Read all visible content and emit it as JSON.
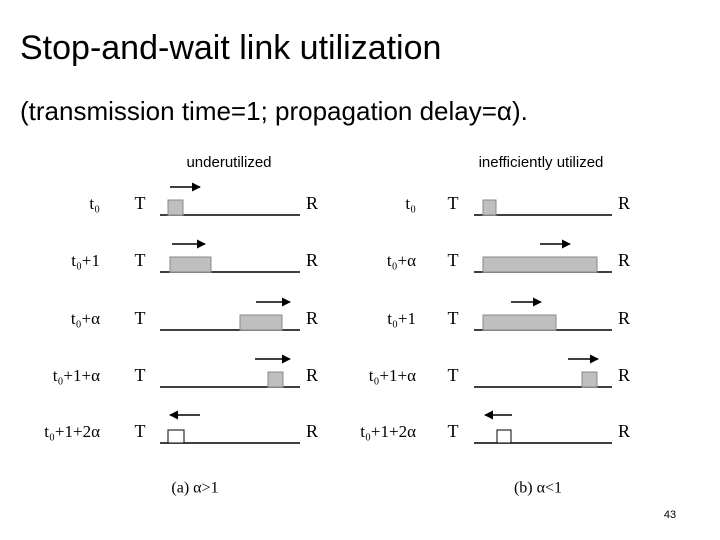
{
  "title": "Stop-and-wait link utilization",
  "subtitle": "(transmission time=1; propagation delay=α).",
  "panels": [
    {
      "heading": "underutilized",
      "caption": "(a)  α>1",
      "rows": [
        {
          "time": "t₀",
          "sender": "T",
          "receiver": "R"
        },
        {
          "time": "t₀+1",
          "sender": "T",
          "receiver": "R"
        },
        {
          "time": "t₀+α",
          "sender": "T",
          "receiver": "R"
        },
        {
          "time": "t₀+1+α",
          "sender": "T",
          "receiver": "R"
        },
        {
          "time": "t₀+1+2α",
          "sender": "T",
          "receiver": "R"
        }
      ]
    },
    {
      "heading": "inefficiently utilized",
      "caption": "(b)  α<1",
      "rows": [
        {
          "time": "t₀",
          "sender": "T",
          "receiver": "R"
        },
        {
          "time": "t₀+α",
          "sender": "T",
          "receiver": "R"
        },
        {
          "time": "t₀+1",
          "sender": "T",
          "receiver": "R"
        },
        {
          "time": "t₀+1+α",
          "sender": "T",
          "receiver": "R"
        },
        {
          "time": "t₀+1+2α",
          "sender": "T",
          "receiver": "R"
        }
      ]
    }
  ],
  "page_number": "43"
}
